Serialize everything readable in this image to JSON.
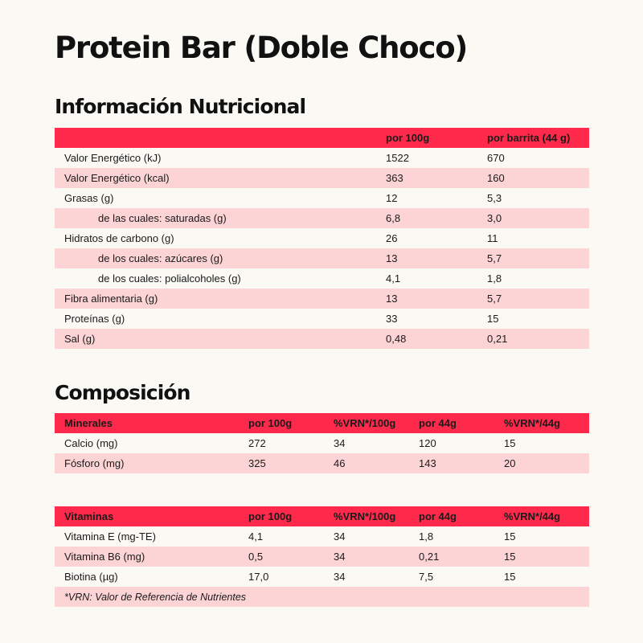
{
  "title": "Protein Bar (Doble Choco)",
  "nutrition": {
    "heading": "Información Nutricional",
    "columns": [
      "",
      "por 100g",
      "por barrita (44 g)"
    ],
    "rows": [
      {
        "label": "Valor Energético (kJ)",
        "per100": "1522",
        "perBar": "670"
      },
      {
        "label": "Valor Energético (kcal)",
        "per100": "363",
        "perBar": "160"
      },
      {
        "label": "Grasas (g)",
        "per100": "12",
        "perBar": "5,3"
      },
      {
        "label": "de las cuales: saturadas (g)",
        "per100": "6,8",
        "perBar": "3,0"
      },
      {
        "label": "Hidratos de carbono (g)",
        "per100": "26",
        "perBar": "11"
      },
      {
        "label": "de los cuales: azúcares (g)",
        "per100": "13",
        "perBar": "5,7"
      },
      {
        "label": "de los cuales: polialcoholes (g)",
        "per100": "4,1",
        "perBar": "1,8"
      },
      {
        "label": "Fibra alimentaria (g)",
        "per100": "13",
        "perBar": "5,7"
      },
      {
        "label": "Proteínas (g)",
        "per100": "33",
        "perBar": "15"
      },
      {
        "label": "Sal (g)",
        "per100": "0,48",
        "perBar": "0,21"
      }
    ]
  },
  "composition": {
    "heading": "Composición",
    "minerals": {
      "columns": [
        "Minerales",
        "por 100g",
        "%VRN*/100g",
        "por 44g",
        "%VRN*/44g"
      ],
      "rows": [
        [
          "Calcio (mg)",
          "272",
          "34",
          "120",
          "15"
        ],
        [
          "Fósforo (mg)",
          "325",
          "46",
          "143",
          "20"
        ]
      ]
    },
    "vitamins": {
      "columns": [
        "Vitaminas",
        "por 100g",
        "%VRN*/100g",
        "por 44g",
        "%VRN*/44g"
      ],
      "rows": [
        [
          "Vitamina E (mg-TE)",
          "4,1",
          "34",
          "1,8",
          "15"
        ],
        [
          "Vitamina B6 (mg)",
          "0,5",
          "34",
          "0,21",
          "15"
        ],
        [
          "Biotina (µg)",
          "17,0",
          "34",
          "7,5",
          "15"
        ]
      ]
    },
    "footnote": "*VRN: Valor de Referencia de Nutrientes"
  },
  "colors": {
    "header": "#ff2a4b",
    "stripe": "#fcd4d6",
    "background": "#fbf9f3"
  }
}
